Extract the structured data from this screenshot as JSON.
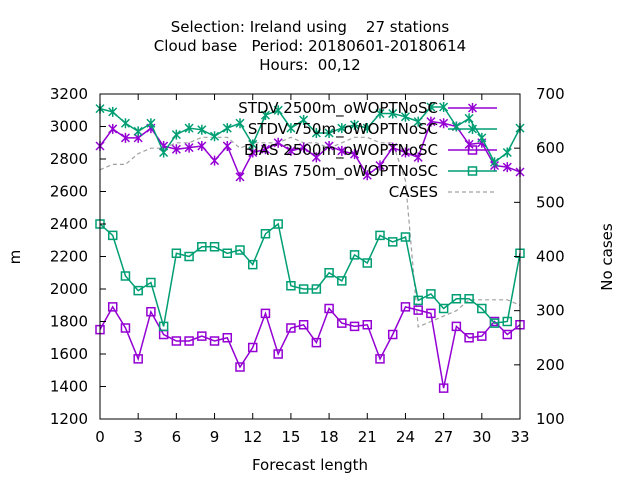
{
  "title_lines": [
    "Selection: Ireland using    27 stations",
    "Cloud base   Period: 20180601-20180614",
    "Hours:  00,12"
  ],
  "chart_data": {
    "type": "line",
    "xlabel": "Forecast length",
    "ylabel": "m",
    "y2label": "No cases",
    "xlim": [
      0,
      33
    ],
    "ylim": [
      1200,
      3200
    ],
    "y2lim": [
      100,
      700
    ],
    "xticks": [
      "0",
      "3",
      "6",
      "9",
      "12",
      "15",
      "18",
      "21",
      "24",
      "27",
      "30",
      "33"
    ],
    "yticks": [
      "1200",
      "1400",
      "1600",
      "1800",
      "2000",
      "2200",
      "2400",
      "2600",
      "2800",
      "3000",
      "3200"
    ],
    "y2ticks": [
      "100",
      "200",
      "300",
      "400",
      "500",
      "600",
      "700"
    ],
    "grid": false,
    "legend_position": "top-right",
    "x": [
      0,
      1,
      2,
      3,
      4,
      5,
      6,
      7,
      8,
      9,
      10,
      11,
      12,
      13,
      14,
      15,
      16,
      17,
      18,
      19,
      20,
      21,
      22,
      23,
      24,
      25,
      26,
      27,
      28,
      29,
      30,
      31,
      32,
      33
    ],
    "series": [
      {
        "name": "STDV 2500m_oWOPTNoSC",
        "color": "#9400d3",
        "marker": "x-star",
        "axis": "y1",
        "values": [
          2880,
          2985,
          2930,
          2930,
          2990,
          2880,
          2860,
          2870,
          2880,
          2790,
          2880,
          2690,
          2840,
          2860,
          2900,
          2850,
          2870,
          2810,
          2880,
          2850,
          2830,
          2700,
          2760,
          2870,
          2840,
          2810,
          3030,
          3020,
          3000,
          2890,
          2900,
          2760,
          2750,
          2720
        ]
      },
      {
        "name": "STDV 750m_oWOPTNoSC",
        "color": "#009e73",
        "marker": "x-star",
        "axis": "y1",
        "values": [
          3110,
          3090,
          3020,
          2970,
          3020,
          2840,
          2950,
          2990,
          2980,
          2940,
          2990,
          3020,
          2890,
          3070,
          3100,
          2990,
          3040,
          2960,
          2960,
          2990,
          3010,
          2990,
          3080,
          3080,
          3060,
          3030,
          3120,
          3120,
          3000,
          3050,
          2930,
          2780,
          2840,
          2990
        ]
      },
      {
        "name": "BIAS 2500m_oWOPTNoSC",
        "color": "#9400d3",
        "marker": "open-square",
        "axis": "y1",
        "values": [
          1750,
          1890,
          1760,
          1570,
          1860,
          1720,
          1680,
          1680,
          1710,
          1680,
          1700,
          1520,
          1640,
          1850,
          1600,
          1760,
          1780,
          1670,
          1880,
          1790,
          1770,
          1780,
          1570,
          1720,
          1890,
          1870,
          1850,
          1390,
          1770,
          1700,
          1710,
          1800,
          1720,
          1780
        ]
      },
      {
        "name": "BIAS 750m_oWOPTNoSC",
        "color": "#009e73",
        "marker": "open-square",
        "axis": "y1",
        "values": [
          2400,
          2330,
          2080,
          1990,
          2040,
          1770,
          2220,
          2200,
          2260,
          2260,
          2220,
          2240,
          2150,
          2340,
          2400,
          2020,
          2000,
          2000,
          2100,
          2050,
          2210,
          2160,
          2330,
          2290,
          2320,
          1930,
          1970,
          1880,
          1940,
          1940,
          1880,
          1790,
          1800,
          2220
        ]
      },
      {
        "name": "CASES",
        "color": "#a0a0a0",
        "marker": "none",
        "axis": "y2",
        "dashed": true,
        "values": [
          560,
          570,
          570,
          590,
          600,
          600,
          610,
          610,
          620,
          620,
          620,
          600,
          610,
          610,
          610,
          620,
          610,
          610,
          600,
          610,
          620,
          620,
          610,
          610,
          540,
          270,
          280,
          290,
          300,
          320,
          320,
          320,
          320,
          310
        ]
      }
    ]
  }
}
